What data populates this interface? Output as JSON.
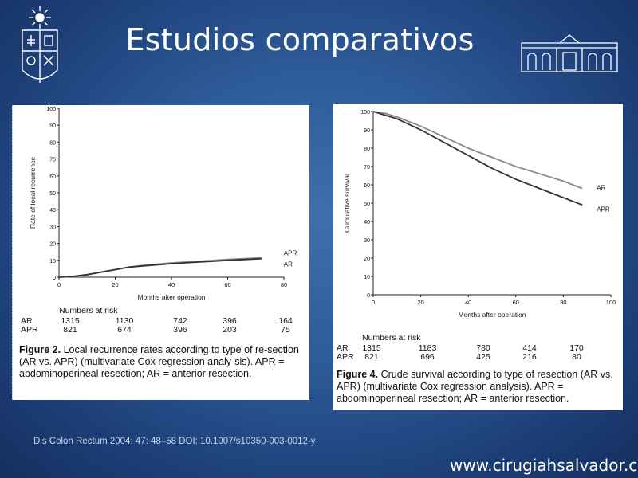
{
  "slide": {
    "title": "Estudios comparativos",
    "citation": "Dis Colon Rectum 2004; 47: 48–58 DOI: 10.1007/s10350-003-0012-y",
    "website": "www.cirugiahsalvador.cl"
  },
  "colors": {
    "background": "#2d5a98",
    "series_ar": "#8a8a8a",
    "series_apr": "#333333"
  },
  "figure_left": {
    "ylabel": "Rate of local recurrence",
    "xlabel": "Months after operation",
    "risk_title": "Numbers at risk",
    "risk_rows": [
      {
        "label": "AR",
        "values": [
          "1315",
          "1130",
          "742",
          "396",
          "164"
        ]
      },
      {
        "label": "APR",
        "values": [
          "821",
          "674",
          "396",
          "203",
          "75"
        ]
      }
    ],
    "caption_label": "Figure 2.",
    "caption_text": "Local recurrence rates according to type of re-section (AR vs. APR) (multivariate Cox regression analy-sis). APR = abdominoperineal resection; AR = anterior resection."
  },
  "figure_right": {
    "ylabel": "Cumulative survival",
    "xlabel": "Months after operation",
    "risk_title": "Numbers at risk",
    "risk_rows": [
      {
        "label": "AR",
        "values": [
          "1315",
          "1183",
          "780",
          "414",
          "170"
        ]
      },
      {
        "label": "APR",
        "values": [
          "821",
          "696",
          "425",
          "216",
          "80"
        ]
      }
    ],
    "caption_label": "Figure 4.",
    "caption_text": "Crude survival according to type of resection (AR vs. APR) (multivariate Cox regression analysis). APR = abdominoperineal resection; AR = anterior resection."
  },
  "chart_data": [
    {
      "type": "line",
      "xlabel": "Months after operation",
      "ylabel": "Rate of local recurrence",
      "xlim": [
        0,
        80
      ],
      "ylim": [
        0,
        100
      ],
      "xticks": [
        0,
        20,
        40,
        60,
        80
      ],
      "yticks": [
        0,
        10,
        20,
        30,
        40,
        50,
        60,
        70,
        80,
        90,
        100
      ],
      "series": [
        {
          "name": "APR",
          "x": [
            0,
            5,
            10,
            15,
            20,
            25,
            30,
            40,
            50,
            60,
            72
          ],
          "y": [
            0,
            0.5,
            1.5,
            3,
            4.5,
            6,
            7,
            8.5,
            9.5,
            10.5,
            11.5
          ]
        },
        {
          "name": "AR",
          "x": [
            0,
            5,
            10,
            15,
            20,
            25,
            30,
            40,
            50,
            60,
            72
          ],
          "y": [
            0,
            0.5,
            1.5,
            3,
            4.5,
            6,
            6.7,
            8,
            9,
            10,
            11
          ]
        }
      ]
    },
    {
      "type": "line",
      "xlabel": "Months after operation",
      "ylabel": "Cumulative survival",
      "xlim": [
        0,
        100
      ],
      "ylim": [
        0,
        100
      ],
      "xticks": [
        0,
        20,
        40,
        60,
        80,
        100
      ],
      "yticks": [
        0,
        10,
        20,
        30,
        40,
        50,
        60,
        70,
        80,
        90,
        100
      ],
      "series": [
        {
          "name": "AR",
          "x": [
            0,
            5,
            10,
            20,
            30,
            40,
            50,
            60,
            70,
            80,
            88
          ],
          "y": [
            100,
            99,
            97,
            92,
            86,
            80,
            75,
            70,
            66,
            62,
            58
          ]
        },
        {
          "name": "APR",
          "x": [
            0,
            5,
            10,
            20,
            30,
            40,
            50,
            60,
            70,
            80,
            88
          ],
          "y": [
            100,
            98,
            96,
            90,
            83,
            76,
            69,
            63,
            58,
            53,
            49
          ]
        }
      ]
    }
  ]
}
